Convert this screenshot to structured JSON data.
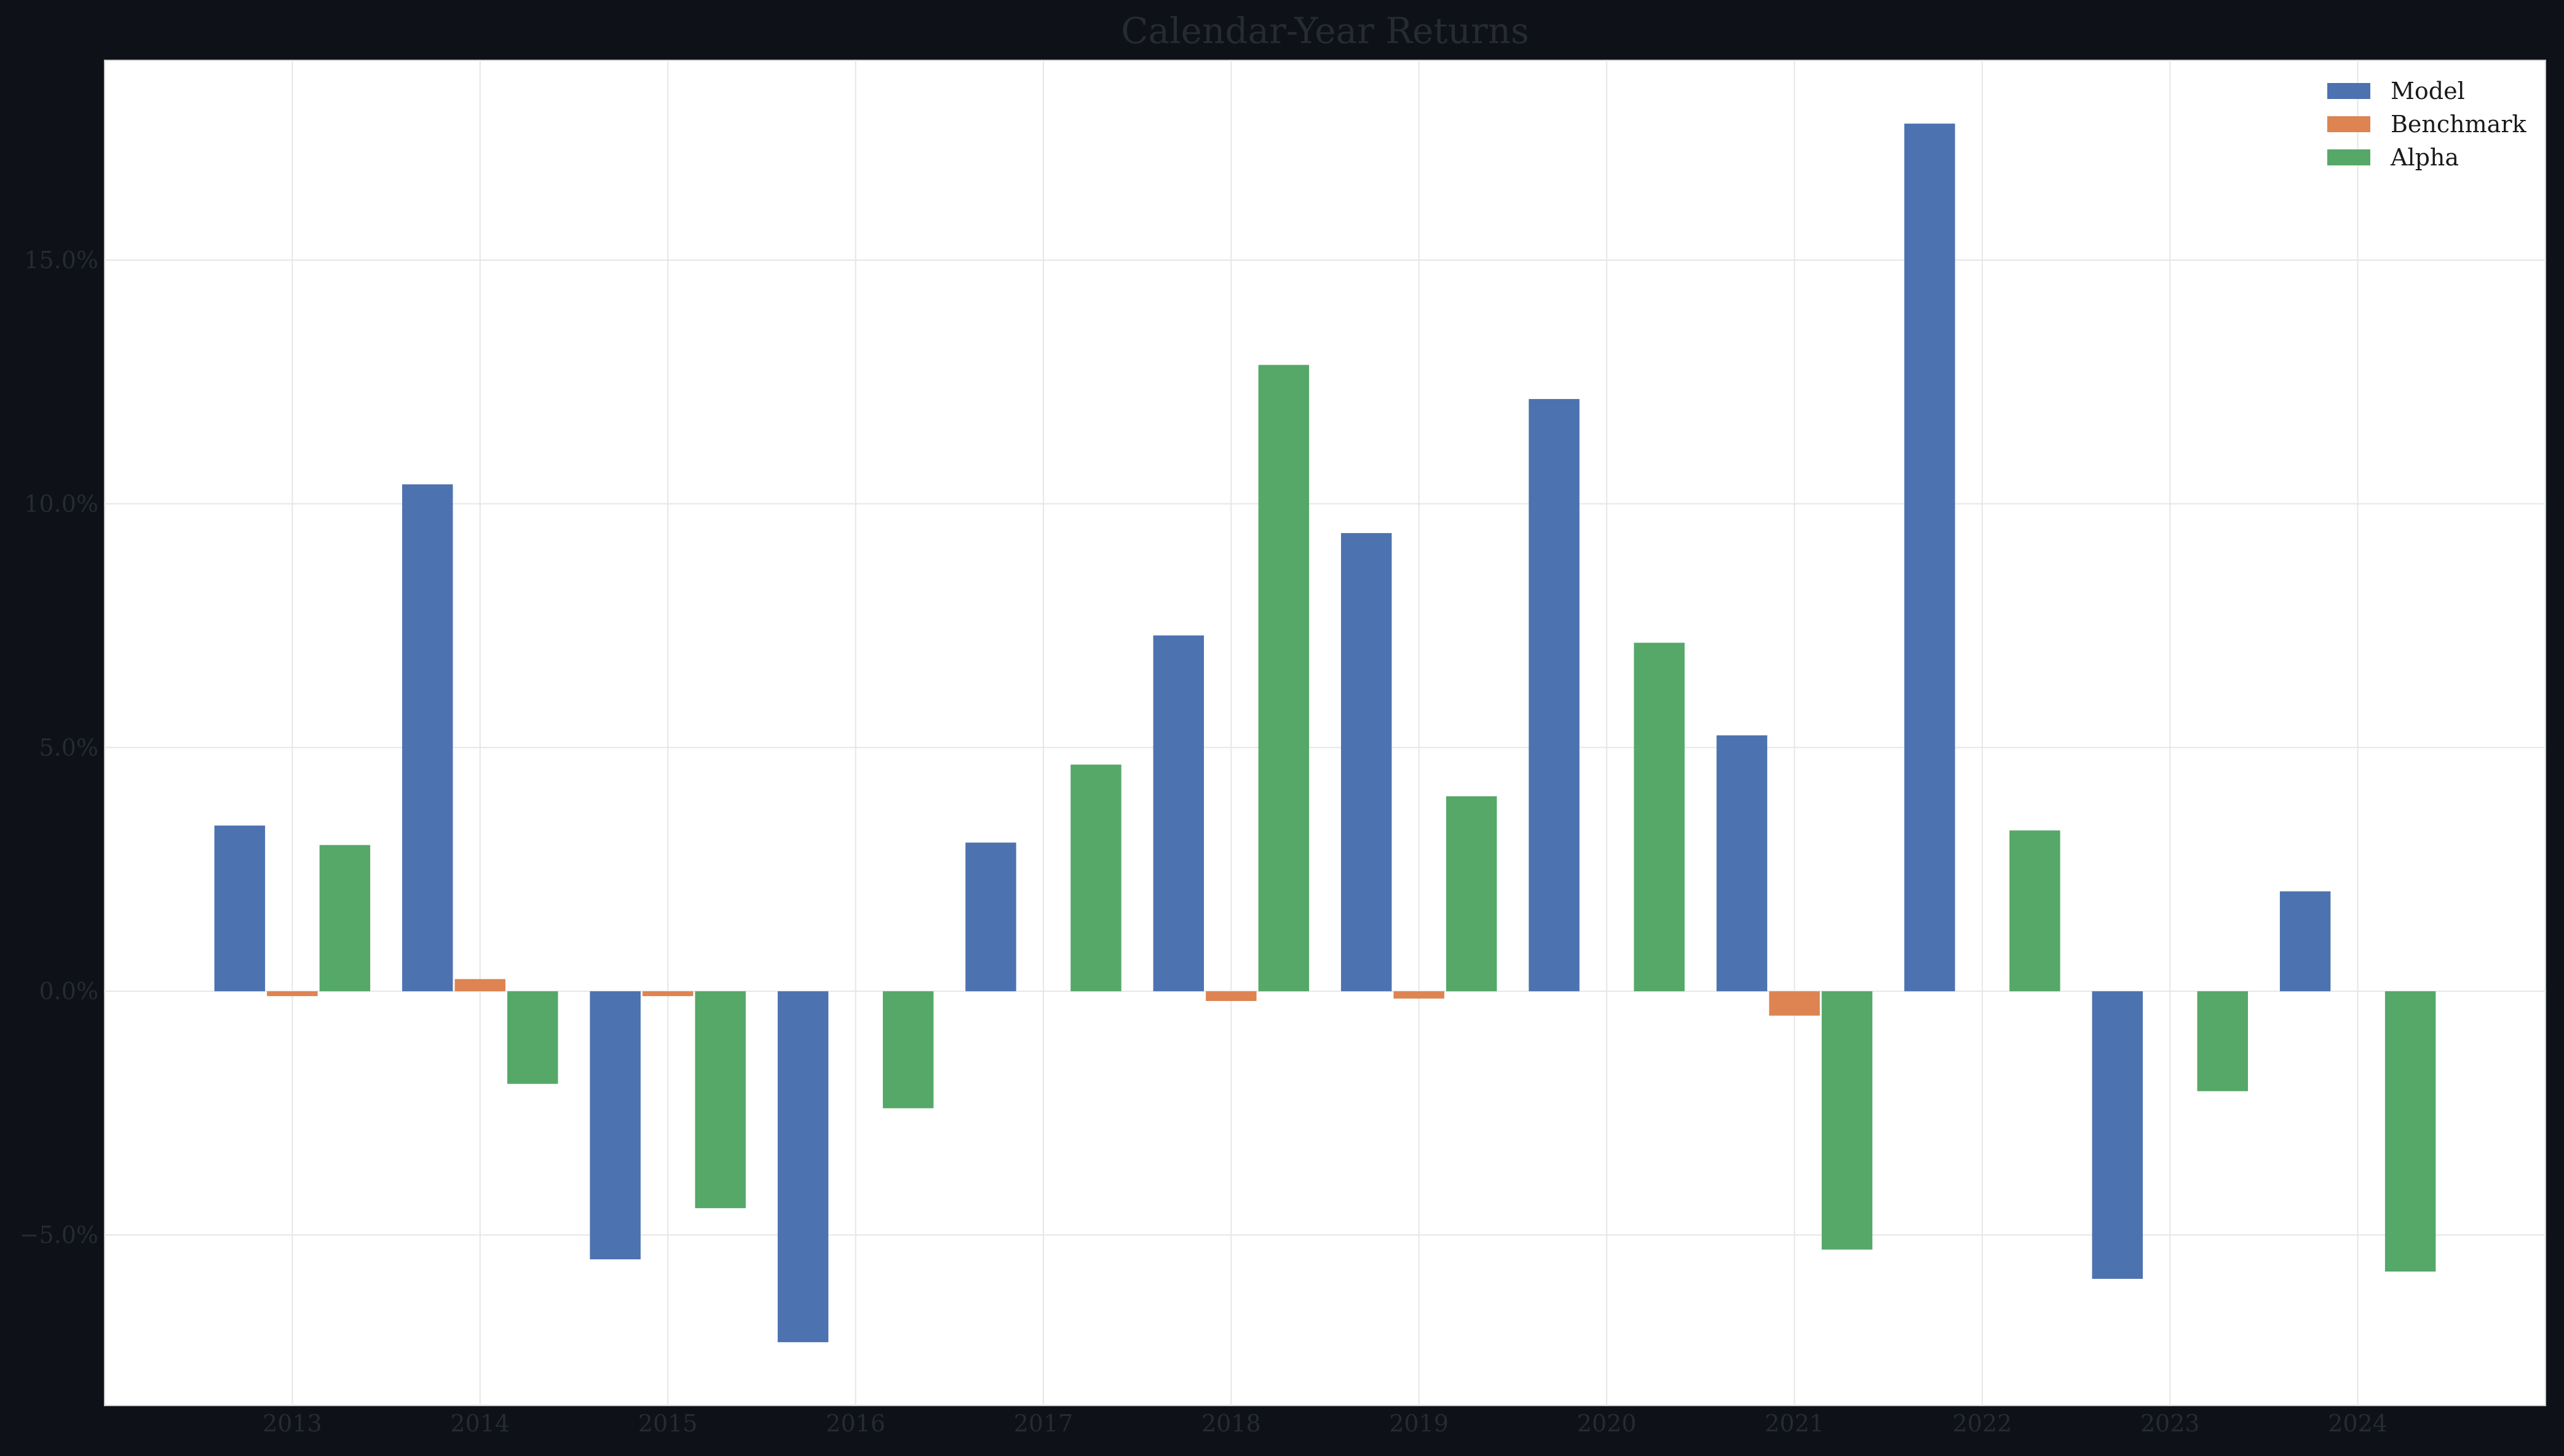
{
  "chart_data": {
    "type": "bar",
    "title": "Calendar-Year Returns",
    "xlabel": "",
    "ylabel": "",
    "categories": [
      "2013",
      "2014",
      "2015",
      "2016",
      "2017",
      "2018",
      "2019",
      "2020",
      "2021",
      "2022",
      "2023",
      "2024"
    ],
    "series": [
      {
        "name": "Model",
        "color": "#4c72b0",
        "values": [
          3.4,
          10.4,
          -5.5,
          -7.2,
          3.05,
          7.3,
          9.4,
          12.15,
          5.25,
          17.8,
          -5.9,
          2.05
        ]
      },
      {
        "name": "Benchmark",
        "color": "#dd8452",
        "values": [
          -0.1,
          0.25,
          -0.1,
          0.0,
          0.0,
          -0.2,
          -0.15,
          0.0,
          -0.5,
          0.0,
          0.0,
          0.0
        ]
      },
      {
        "name": "Alpha",
        "color": "#55a868",
        "values": [
          3.0,
          -1.9,
          -4.45,
          -2.4,
          4.65,
          12.85,
          4.0,
          7.15,
          -5.3,
          3.3,
          -2.05,
          -5.75
        ]
      }
    ],
    "yticks": [
      -5.0,
      0.0,
      5.0,
      10.0,
      15.0
    ],
    "ytick_labels": [
      "−5.0%",
      "0.0%",
      "5.0%",
      "10.0%",
      "15.0%"
    ],
    "ylim": [
      -8.5,
      19.1
    ],
    "xlim": [
      2012,
      2025
    ],
    "grid": true,
    "legend_position": "top-right"
  },
  "colors": {
    "page_background": "#0e1117",
    "plot_background": "#ffffff",
    "grid": "#e6e6e6",
    "tick_label": "#262a33",
    "title": "#262a33"
  }
}
